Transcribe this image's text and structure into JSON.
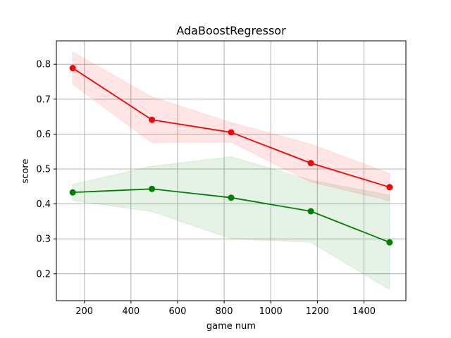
{
  "chart_data": {
    "type": "line",
    "title": "AdaBoostRegressor",
    "xlabel": "game num",
    "ylabel": "score",
    "xlim": [
      80,
      1580
    ],
    "ylim": [
      0.123,
      0.867
    ],
    "xticks": [
      200,
      400,
      600,
      800,
      1000,
      1200,
      1400
    ],
    "yticks": [
      0.2,
      0.3,
      0.4,
      0.5,
      0.6,
      0.7,
      0.8
    ],
    "xtick_labels": [
      "200",
      "400",
      "600",
      "800",
      "1000",
      "1200",
      "1400"
    ],
    "ytick_labels": [
      "0.2",
      "0.3",
      "0.4",
      "0.5",
      "0.6",
      "0.7",
      "0.8"
    ],
    "grid": true,
    "x": [
      150,
      490,
      830,
      1172,
      1510
    ],
    "series": [
      {
        "color": "#ff0000",
        "band_color": "#ffcccc",
        "values": [
          0.789,
          0.641,
          0.605,
          0.517,
          0.448
        ],
        "upper": [
          0.835,
          0.706,
          0.633,
          0.571,
          0.487
        ],
        "lower": [
          0.743,
          0.576,
          0.577,
          0.463,
          0.409
        ]
      },
      {
        "color": "#008000",
        "band_color": "#cce6cc",
        "values": [
          0.433,
          0.443,
          0.418,
          0.379,
          0.29
        ],
        "upper": [
          0.456,
          0.508,
          0.535,
          0.468,
          0.425
        ],
        "lower": [
          0.41,
          0.378,
          0.301,
          0.29,
          0.155
        ]
      }
    ]
  }
}
